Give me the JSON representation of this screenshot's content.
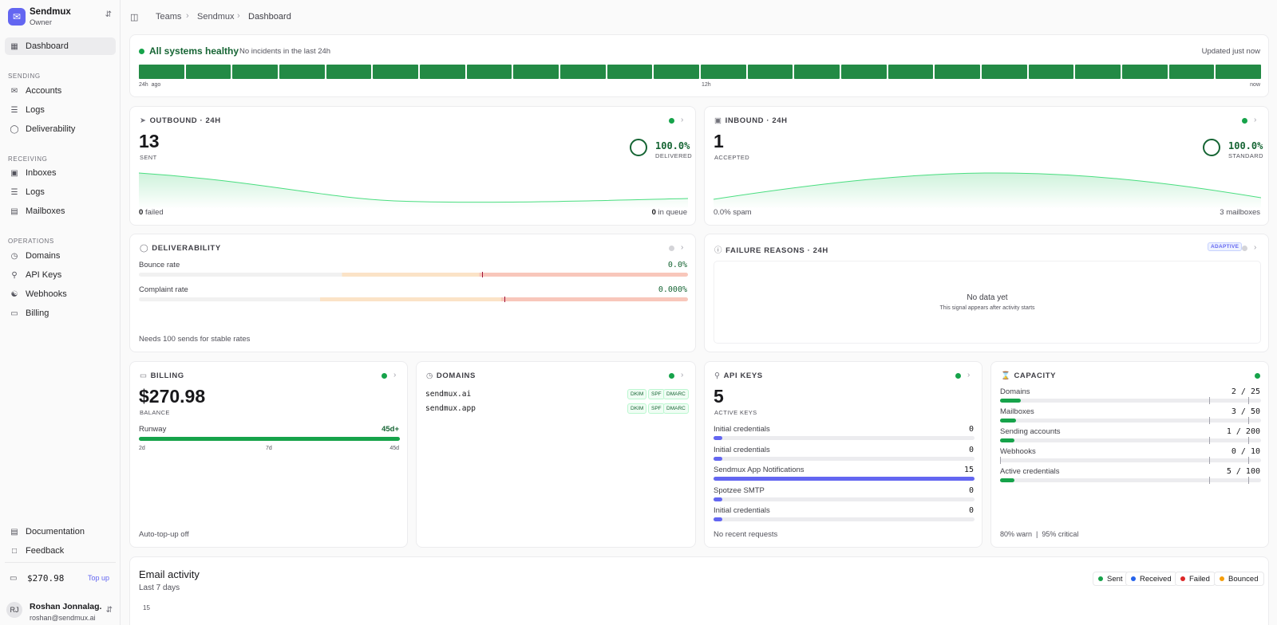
{
  "workspace": {
    "name": "Sendmux",
    "role": "Owner"
  },
  "sidebar": {
    "dashboard": "Dashboard",
    "sections": {
      "sending": "SENDING",
      "receiving": "RECEIVING",
      "operations": "OPERATIONS"
    },
    "sending_items": [
      "Accounts",
      "Logs",
      "Deliverability"
    ],
    "receiving_items": [
      "Inboxes",
      "Logs",
      "Mailboxes"
    ],
    "operations_items": [
      "Domains",
      "API Keys",
      "Webhooks",
      "Billing"
    ],
    "bottom_items": [
      "Documentation",
      "Feedback"
    ],
    "balance": "$270.98",
    "topup": "Top up",
    "user": {
      "initials": "RJ",
      "name": "Roshan Jonnalag...",
      "email": "roshan@sendmux.ai"
    }
  },
  "breadcrumb": [
    "Teams",
    "Sendmux",
    "Dashboard"
  ],
  "status": {
    "title": "All systems healthy",
    "subtitle": "No incidents in the last 24h",
    "updated": "Updated just now",
    "segments": 24,
    "axis": {
      "start": "24h",
      "start_suffix": "ago",
      "mid": "12h",
      "end": "now"
    }
  },
  "outbound": {
    "title": "OUTBOUND · 24H",
    "count": "13",
    "count_label": "SENT",
    "pct": "100.0%",
    "pct_label": "DELIVERED",
    "failed_value": "0",
    "failed_label": "failed",
    "queue_value": "0",
    "queue_label": "in queue"
  },
  "inbound": {
    "title": "INBOUND · 24H",
    "count": "1",
    "count_label": "ACCEPTED",
    "pct": "100.0%",
    "pct_label": "STANDARD",
    "spam": "0.0% spam",
    "mailboxes": "3 mailboxes"
  },
  "deliverability": {
    "title": "DELIVERABILITY",
    "bounce_label": "Bounce rate",
    "bounce_value": "0.0%",
    "complaint_label": "Complaint rate",
    "complaint_value": "0.000%",
    "note": "Needs 100 sends for stable rates"
  },
  "failure": {
    "title": "FAILURE REASONS · 24H",
    "badge": "ADAPTIVE",
    "empty_title": "No data yet",
    "empty_sub": "This signal appears after activity starts"
  },
  "billing": {
    "title": "BILLING",
    "balance": "$270.98",
    "balance_label": "BALANCE",
    "runway_label": "Runway",
    "runway_value": "45d+",
    "runway_fraction": 1.0,
    "ticks": [
      "2d",
      "7d",
      "45d"
    ],
    "autotopup": "Auto-top-up off"
  },
  "domains": {
    "title": "DOMAINS",
    "items": [
      {
        "name": "sendmux.ai",
        "tags": [
          "DKIM",
          "SPF",
          "DMARC"
        ]
      },
      {
        "name": "sendmux.app",
        "tags": [
          "DKIM",
          "SPF",
          "DMARC"
        ]
      }
    ]
  },
  "apikeys": {
    "title": "API KEYS",
    "count": "5",
    "count_label": "ACTIVE KEYS",
    "items": [
      {
        "name": "Initial credentials",
        "value": "0",
        "fraction": 0.03
      },
      {
        "name": "Initial credentials",
        "value": "0",
        "fraction": 0.03
      },
      {
        "name": "Sendmux App Notifications",
        "value": "15",
        "fraction": 1.0
      },
      {
        "name": "Spotzee SMTP",
        "value": "0",
        "fraction": 0.03
      },
      {
        "name": "Initial credentials",
        "value": "0",
        "fraction": 0.03
      }
    ],
    "footer": "No recent requests"
  },
  "capacity": {
    "title": "CAPACITY",
    "items": [
      {
        "name": "Domains",
        "value": "2 / 25",
        "fraction": 0.08
      },
      {
        "name": "Mailboxes",
        "value": "3 / 50",
        "fraction": 0.06
      },
      {
        "name": "Sending accounts",
        "value": "1 / 200",
        "fraction": 0.005
      },
      {
        "name": "Webhooks",
        "value": "0 / 10",
        "fraction": 0
      },
      {
        "name": "Active credentials",
        "value": "5 / 100",
        "fraction": 0.05
      }
    ],
    "warn": "80% warn",
    "critical": "95% critical"
  },
  "activity": {
    "title": "Email activity",
    "subtitle": "Last 7 days",
    "y_top": "15",
    "legend": [
      {
        "name": "Sent",
        "color": "#16a34a"
      },
      {
        "name": "Received",
        "color": "#2563eb"
      },
      {
        "name": "Failed",
        "color": "#dc2626"
      },
      {
        "name": "Bounced",
        "color": "#f59e0b"
      }
    ]
  },
  "colors": {
    "green": "#16a34a",
    "indigo": "#6366f1"
  }
}
